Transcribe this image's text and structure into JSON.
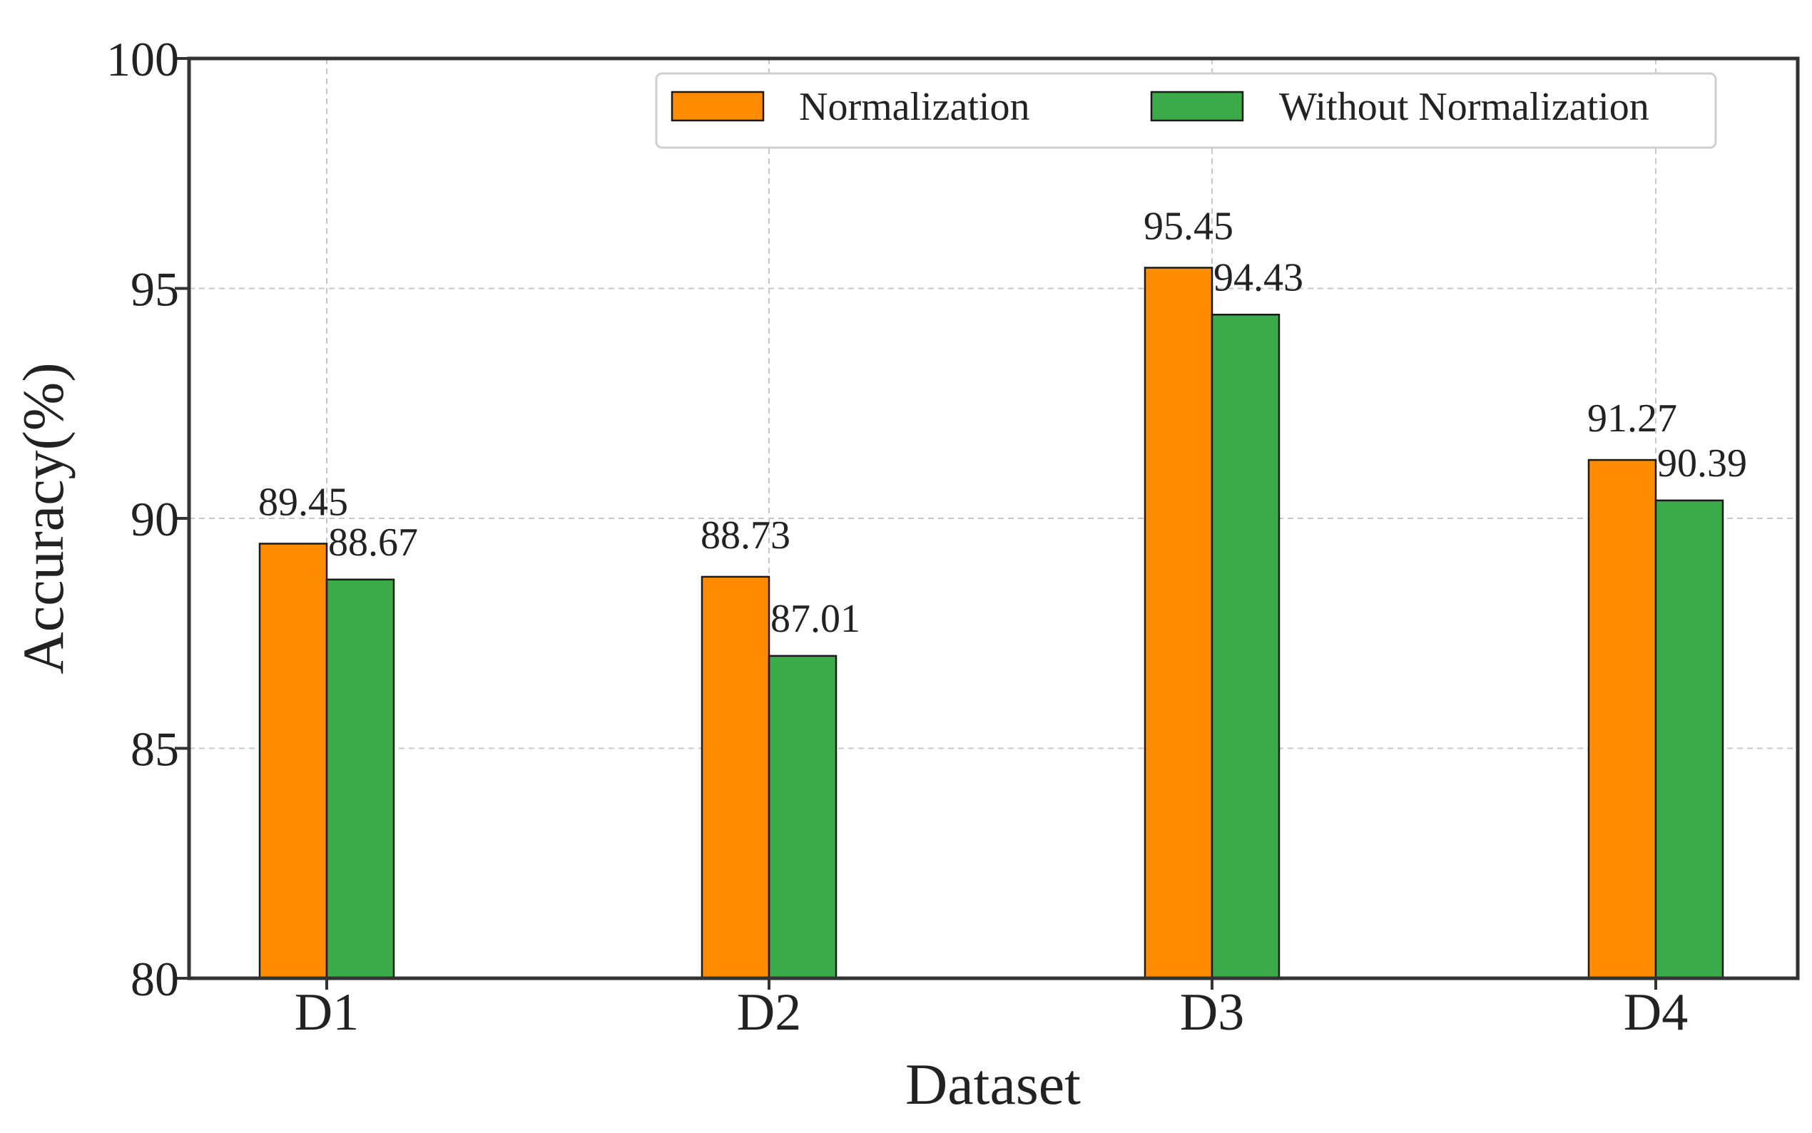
{
  "chart_data": {
    "type": "bar",
    "title": "",
    "xlabel": "Dataset",
    "ylabel": "Accuracy(%)",
    "categories": [
      "D1",
      "D2",
      "D3",
      "D4"
    ],
    "ylim": [
      80,
      100
    ],
    "yticks": [
      80,
      85,
      90,
      95,
      100
    ],
    "grid": true,
    "legend_position": "top-right",
    "series": [
      {
        "name": "Normalization",
        "color": "#ff8c00",
        "values": [
          89.45,
          88.73,
          95.45,
          91.27
        ],
        "labels": [
          "89.45",
          "88.73",
          "95.45",
          "91.27"
        ]
      },
      {
        "name": "Without Normalization",
        "color": "#3aab48",
        "values": [
          88.67,
          87.01,
          94.43,
          90.39
        ],
        "labels": [
          "88.67",
          "87.01",
          "94.43",
          "90.39"
        ]
      }
    ]
  }
}
